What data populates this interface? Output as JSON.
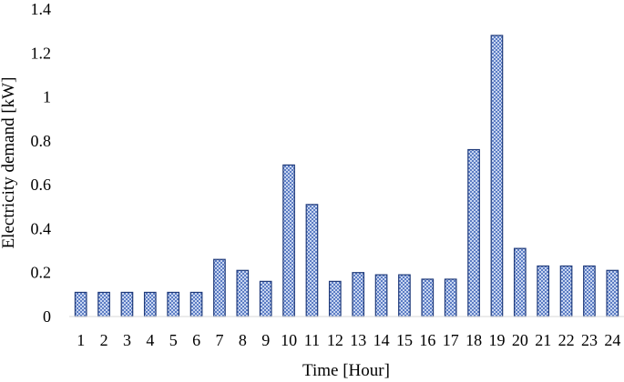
{
  "chart_data": {
    "type": "bar",
    "categories": [
      "1",
      "2",
      "3",
      "4",
      "5",
      "6",
      "7",
      "8",
      "9",
      "10",
      "11",
      "12",
      "13",
      "14",
      "15",
      "16",
      "17",
      "18",
      "19",
      "20",
      "21",
      "22",
      "23",
      "24"
    ],
    "values": [
      0.11,
      0.11,
      0.11,
      0.11,
      0.11,
      0.11,
      0.26,
      0.21,
      0.16,
      0.69,
      0.51,
      0.16,
      0.2,
      0.19,
      0.19,
      0.17,
      0.17,
      0.76,
      1.28,
      0.31,
      0.23,
      0.23,
      0.23,
      0.21
    ],
    "title": "",
    "xlabel": "Time [Hour]",
    "ylabel": "Electricity demand [kW]",
    "ylim": [
      0,
      1.4
    ],
    "yticks": [
      0,
      0.2,
      0.4,
      0.6,
      0.8,
      1,
      1.2,
      1.4
    ],
    "ytick_labels": [
      "0",
      "0.2",
      "0.4",
      "0.6",
      "0.8",
      "1",
      "1.2",
      "1.4"
    ],
    "grid": false,
    "legend": "none",
    "bar_fill_color": "#5b7cc4",
    "bar_pattern_color": "#c9d6f0",
    "bar_edge_color": "#1f3a7a",
    "axis_color": "#d9d9d9"
  }
}
